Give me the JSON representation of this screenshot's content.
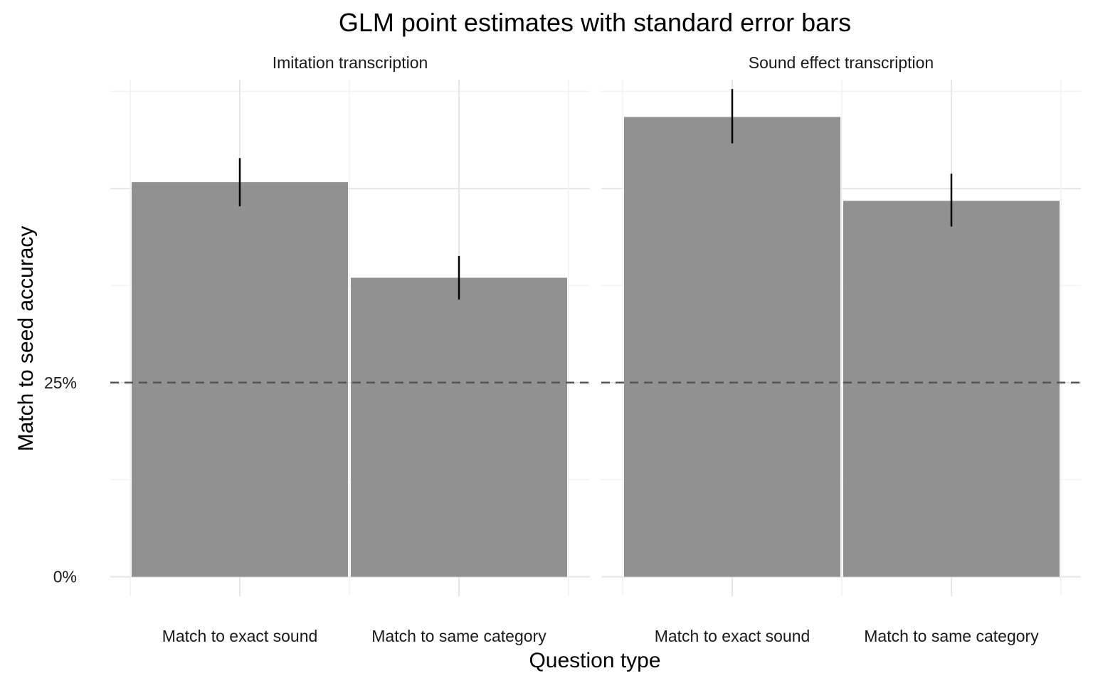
{
  "chart_data": {
    "type": "bar",
    "title": "GLM point estimates with standard error bars",
    "xlabel": "Question type",
    "ylabel": "Match to seed accuracy",
    "categories": [
      "Match to exact sound",
      "Match to same category"
    ],
    "y_ticks": [
      {
        "value": 0,
        "label": "0%"
      },
      {
        "value": 0.25,
        "label": "25%"
      }
    ],
    "ylim": [
      -0.025,
      0.64
    ],
    "reference_line": {
      "value": 0.25,
      "style": "dashed"
    },
    "grid": true,
    "bar_color": "#919191",
    "error_color": "#000000",
    "facets": [
      {
        "label": "Imitation transcription",
        "bars": [
          {
            "category": "Match to exact sound",
            "value": 0.508,
            "se_low": 0.477,
            "se_high": 0.539
          },
          {
            "category": "Match to same category",
            "value": 0.385,
            "se_low": 0.357,
            "se_high": 0.413
          }
        ]
      },
      {
        "label": "Sound effect transcription",
        "bars": [
          {
            "category": "Match to exact sound",
            "value": 0.592,
            "se_low": 0.558,
            "se_high": 0.628
          },
          {
            "category": "Match to same category",
            "value": 0.484,
            "se_low": 0.451,
            "se_high": 0.519
          }
        ]
      }
    ]
  }
}
